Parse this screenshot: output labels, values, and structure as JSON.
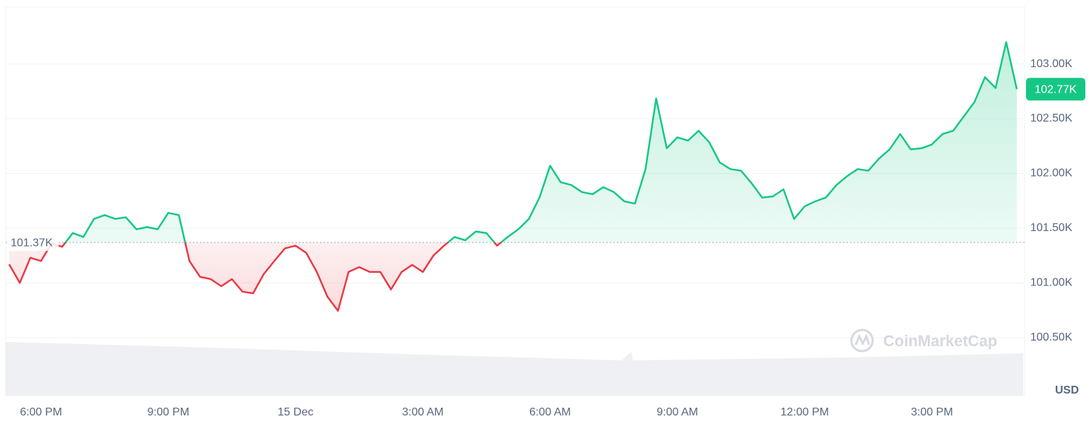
{
  "chart_data": {
    "type": "line",
    "values": [
      101170,
      101000,
      101230,
      101200,
      101360,
      101330,
      101456,
      101420,
      101585,
      101620,
      101585,
      101600,
      101490,
      101510,
      101490,
      101640,
      101620,
      101200,
      101055,
      101035,
      100970,
      101035,
      100920,
      100905,
      101080,
      101200,
      101315,
      101340,
      101275,
      101100,
      100875,
      100745,
      101100,
      101145,
      101100,
      101100,
      100940,
      101100,
      101165,
      101100,
      101250,
      101340,
      101420,
      101390,
      101470,
      101455,
      101340,
      101420,
      101490,
      101585,
      101780,
      102070,
      101920,
      101895,
      101830,
      101810,
      101875,
      101830,
      101745,
      101725,
      102040,
      102685,
      102230,
      102330,
      102300,
      102390,
      102285,
      102100,
      102040,
      102025,
      101910,
      101780,
      101790,
      101855,
      101585,
      101700,
      101745,
      101780,
      101895,
      101975,
      102040,
      102025,
      102135,
      102220,
      102360,
      102220,
      102230,
      102265,
      102360,
      102390,
      102520,
      102650,
      102880,
      102780,
      103200,
      102770
    ],
    "colors": {
      "up": "#16c784",
      "down": "#ea3943"
    },
    "reference": {
      "value": 101370,
      "label": "101.37K"
    },
    "current": {
      "value": 102770,
      "label": "102.77K"
    },
    "ylim": [
      99970,
      103520
    ],
    "yticks": [
      {
        "value": 100500,
        "label": "100.50K"
      },
      {
        "value": 101000,
        "label": "101.00K"
      },
      {
        "value": 101500,
        "label": "101.50K"
      },
      {
        "value": 102000,
        "label": "102.00K"
      },
      {
        "value": 102500,
        "label": "102.50K"
      },
      {
        "value": 103000,
        "label": "103.00K"
      }
    ],
    "xlim": [
      -0.33,
      95.6
    ],
    "xticks": [
      {
        "value": 3,
        "label": "6:00 PM"
      },
      {
        "value": 15,
        "label": "9:00 PM"
      },
      {
        "value": 27,
        "label": "15 Dec"
      },
      {
        "value": 39,
        "label": "3:00 AM"
      },
      {
        "value": 51,
        "label": "6:00 AM"
      },
      {
        "value": 63,
        "label": "9:00 AM"
      },
      {
        "value": 75,
        "label": "12:00 PM"
      },
      {
        "value": 87,
        "label": "3:00 PM"
      }
    ],
    "y_unit": "USD",
    "watermark": "CoinMarketCap",
    "grid": true
  }
}
